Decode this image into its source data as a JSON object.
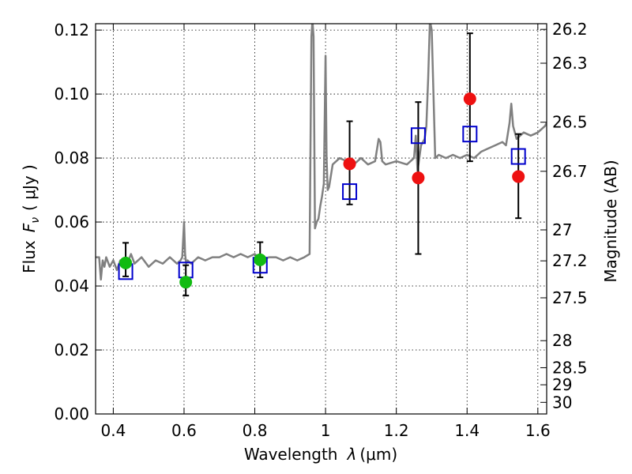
{
  "chart_data": {
    "type": "scatter",
    "xlabel": "Wavelength",
    "xlabel_symbol": "λ",
    "xlabel_unit": "(μm)",
    "ylabel_prefix": "Flux",
    "ylabel_symbol": "F",
    "ylabel_sub": "ν",
    "ylabel_unit": "( μJy )",
    "y2label": "Magnitude (AB)",
    "xlim": [
      0.35,
      1.625
    ],
    "ylim": [
      0.0,
      0.122
    ],
    "grid": true,
    "x_ticks": [
      {
        "value": 0.4,
        "label": "0.4"
      },
      {
        "value": 0.6,
        "label": "0.6"
      },
      {
        "value": 0.8,
        "label": "0.8"
      },
      {
        "value": 1.0,
        "label": "1"
      },
      {
        "value": 1.2,
        "label": "1.2"
      },
      {
        "value": 1.4,
        "label": "1.4"
      },
      {
        "value": 1.6,
        "label": "1.6"
      }
    ],
    "y_ticks": [
      {
        "value": 0.0,
        "label": "0.00"
      },
      {
        "value": 0.02,
        "label": "0.02"
      },
      {
        "value": 0.04,
        "label": "0.04"
      },
      {
        "value": 0.06,
        "label": "0.06"
      },
      {
        "value": 0.08,
        "label": "0.08"
      },
      {
        "value": 0.1,
        "label": "0.10"
      },
      {
        "value": 0.12,
        "label": "0.12"
      }
    ],
    "y2_ticks": [
      {
        "mag": 26.2,
        "label": "26.2"
      },
      {
        "mag": 26.3,
        "label": "26.3"
      },
      {
        "mag": 26.5,
        "label": "26.5"
      },
      {
        "mag": 26.7,
        "label": "26.7"
      },
      {
        "mag": 27.0,
        "label": "27"
      },
      {
        "mag": 27.2,
        "label": "27.2"
      },
      {
        "mag": 27.5,
        "label": "27.5"
      },
      {
        "mag": 28.0,
        "label": "28"
      },
      {
        "mag": 28.5,
        "label": "28.5"
      },
      {
        "mag": 29.0,
        "label": "29"
      },
      {
        "mag": 30.0,
        "label": "30"
      }
    ],
    "model_spectrum": {
      "color": "#808080",
      "x": [
        0.35,
        0.36,
        0.365,
        0.37,
        0.375,
        0.38,
        0.39,
        0.4,
        0.41,
        0.42,
        0.43,
        0.44,
        0.45,
        0.46,
        0.48,
        0.5,
        0.52,
        0.54,
        0.56,
        0.58,
        0.59,
        0.595,
        0.6,
        0.603,
        0.606,
        0.61,
        0.62,
        0.64,
        0.66,
        0.68,
        0.7,
        0.72,
        0.74,
        0.76,
        0.78,
        0.8,
        0.82,
        0.84,
        0.86,
        0.88,
        0.9,
        0.92,
        0.94,
        0.955,
        0.96,
        0.963,
        0.966,
        0.97,
        0.975,
        0.98,
        0.985,
        0.99,
        0.995,
        1.0,
        1.003,
        1.006,
        1.01,
        1.02,
        1.04,
        1.06,
        1.08,
        1.1,
        1.12,
        1.14,
        1.15,
        1.155,
        1.16,
        1.17,
        1.2,
        1.23,
        1.25,
        1.255,
        1.26,
        1.27,
        1.28,
        1.285,
        1.29,
        1.295,
        1.3,
        1.305,
        1.31,
        1.32,
        1.34,
        1.36,
        1.38,
        1.4,
        1.42,
        1.44,
        1.46,
        1.48,
        1.5,
        1.51,
        1.52,
        1.525,
        1.53,
        1.54,
        1.56,
        1.58,
        1.6,
        1.62,
        1.625
      ],
      "y": [
        0.049,
        0.049,
        0.042,
        0.048,
        0.046,
        0.049,
        0.046,
        0.048,
        0.045,
        0.048,
        0.046,
        0.047,
        0.05,
        0.047,
        0.049,
        0.046,
        0.048,
        0.047,
        0.049,
        0.047,
        0.048,
        0.049,
        0.06,
        0.05,
        0.047,
        0.048,
        0.047,
        0.049,
        0.048,
        0.049,
        0.049,
        0.05,
        0.049,
        0.05,
        0.049,
        0.05,
        0.048,
        0.049,
        0.049,
        0.048,
        0.049,
        0.048,
        0.049,
        0.05,
        0.118,
        0.123,
        0.118,
        0.058,
        0.06,
        0.061,
        0.065,
        0.068,
        0.072,
        0.112,
        0.08,
        0.07,
        0.071,
        0.078,
        0.08,
        0.079,
        0.078,
        0.08,
        0.078,
        0.079,
        0.086,
        0.085,
        0.079,
        0.078,
        0.079,
        0.078,
        0.08,
        0.087,
        0.076,
        0.084,
        0.086,
        0.09,
        0.105,
        0.123,
        0.12,
        0.1,
        0.08,
        0.081,
        0.08,
        0.081,
        0.08,
        0.081,
        0.08,
        0.082,
        0.083,
        0.084,
        0.085,
        0.084,
        0.091,
        0.097,
        0.09,
        0.086,
        0.088,
        0.087,
        0.088,
        0.09,
        0.091
      ]
    },
    "series": [
      {
        "marker": "open-square",
        "color": "#0000cc",
        "x": [
          0.435,
          0.605,
          0.815,
          1.068,
          1.262,
          1.408,
          1.545
        ],
        "y": [
          0.0445,
          0.045,
          0.0465,
          0.0695,
          0.087,
          0.0875,
          0.0805
        ]
      },
      {
        "marker": "circle",
        "color": "#11bb11",
        "x": [
          0.435,
          0.605,
          0.815
        ],
        "y": [
          0.0472,
          0.0412,
          0.0482
        ],
        "yerr_low": [
          0.0042,
          0.0042,
          0.0055
        ],
        "yerr_high": [
          0.0063,
          0.0053,
          0.0055
        ]
      },
      {
        "marker": "circle",
        "color": "#ee1111",
        "x": [
          1.068,
          1.262,
          1.408,
          1.545
        ],
        "y": [
          0.0782,
          0.0738,
          0.0985,
          0.0742
        ],
        "yerr_low": [
          0.0127,
          0.0238,
          0.0195,
          0.013
        ],
        "yerr_high": [
          0.0133,
          0.0237,
          0.0205,
          0.0133
        ]
      }
    ]
  }
}
